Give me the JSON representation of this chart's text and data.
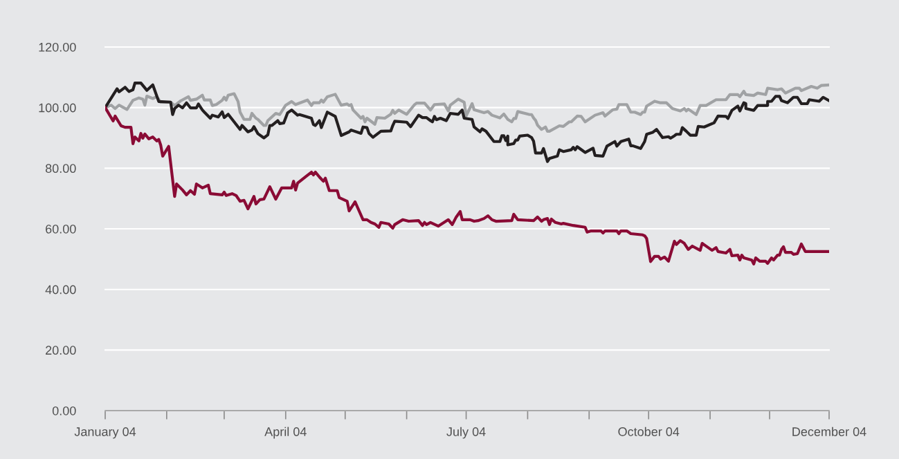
{
  "chart_data": {
    "type": "line",
    "x": [
      "2004-01-01",
      "2004-01-05",
      "2004-01-06",
      "2004-01-09",
      "2004-01-11",
      "2004-01-14",
      "2004-01-15",
      "2004-01-16",
      "2004-01-18",
      "2004-01-19",
      "2004-01-20",
      "2004-01-21",
      "2004-01-23",
      "2004-01-25",
      "2004-01-27",
      "2004-01-28",
      "2004-01-29",
      "2004-01-30",
      "2004-02-02",
      "2004-02-05",
      "2004-02-06",
      "2004-02-09",
      "2004-02-11",
      "2004-02-13",
      "2004-02-15",
      "2004-02-16",
      "2004-02-19",
      "2004-02-22",
      "2004-02-23",
      "2004-02-29",
      "2004-03-01",
      "2004-03-02",
      "2004-03-05",
      "2004-03-07",
      "2004-03-09",
      "2004-03-11",
      "2004-03-13",
      "2004-03-16",
      "2004-03-17",
      "2004-03-19",
      "2004-03-21",
      "2004-03-24",
      "2004-03-27",
      "2004-03-30",
      "2004-04-04",
      "2004-04-05",
      "2004-04-06",
      "2004-04-07",
      "2004-04-14",
      "2004-04-15",
      "2004-04-16",
      "2004-04-18",
      "2004-04-20",
      "2004-04-21",
      "2004-04-23",
      "2004-04-27",
      "2004-04-28",
      "2004-05-02",
      "2004-05-03",
      "2004-05-06",
      "2004-05-10",
      "2004-05-12",
      "2004-05-14",
      "2004-05-16",
      "2004-05-18",
      "2004-05-19",
      "2004-05-23",
      "2004-05-25",
      "2004-05-26",
      "2004-05-30",
      "2004-06-02",
      "2004-06-07",
      "2004-06-09",
      "2004-06-10",
      "2004-06-11",
      "2004-06-13",
      "2004-06-17",
      "2004-06-22",
      "2004-06-24",
      "2004-06-26",
      "2004-06-28",
      "2004-06-29",
      "2004-07-03",
      "2004-07-05",
      "2004-07-07",
      "2004-07-10",
      "2004-07-12",
      "2004-07-14",
      "2004-07-16",
      "2004-07-24",
      "2004-07-25",
      "2004-07-27",
      "2004-08-04",
      "2004-08-06",
      "2004-08-08",
      "2004-08-09",
      "2004-08-11",
      "2004-08-12",
      "2004-08-13",
      "2004-08-15",
      "2004-08-18",
      "2004-08-19",
      "2004-08-24",
      "2004-08-30",
      "2004-08-31",
      "2004-09-02",
      "2004-09-07",
      "2004-09-08",
      "2004-09-09",
      "2004-09-15",
      "2004-09-16",
      "2004-09-17",
      "2004-09-20",
      "2004-09-22",
      "2004-09-28",
      "2004-09-29",
      "2004-09-30",
      "2004-10-02",
      "2004-10-04",
      "2004-10-06",
      "2004-10-07",
      "2004-10-09",
      "2004-10-11",
      "2004-10-14",
      "2004-10-15",
      "2004-10-17",
      "2004-10-19",
      "2004-10-21",
      "2004-10-23",
      "2004-10-27",
      "2004-10-28",
      "2004-11-02",
      "2004-11-04",
      "2004-11-05",
      "2004-11-09",
      "2004-11-11",
      "2004-11-12",
      "2004-11-15",
      "2004-11-16",
      "2004-11-17",
      "2004-11-18",
      "2004-11-22",
      "2004-11-23",
      "2004-11-24",
      "2004-11-26",
      "2004-11-29",
      "2004-11-30",
      "2004-12-02",
      "2004-12-03",
      "2004-12-05",
      "2004-12-06",
      "2004-12-07",
      "2004-12-08",
      "2004-12-09",
      "2004-12-12",
      "2004-12-13",
      "2004-12-15",
      "2004-12-17",
      "2004-12-19",
      "2004-12-31"
    ],
    "series": [
      {
        "color": "#a0a2a4",
        "x": [
          "2004-01-01",
          "2004-01-04",
          "2004-01-06",
          "2004-01-08",
          "2004-01-12",
          "2004-01-15",
          "2004-01-18",
          "2004-01-20",
          "2004-01-21",
          "2004-01-22",
          "2004-01-25",
          "2004-01-27",
          "2004-01-29",
          "2004-02-03",
          "2004-02-05",
          "2004-02-08",
          "2004-02-12",
          "2004-02-13",
          "2004-02-16",
          "2004-02-19",
          "2004-02-20",
          "2004-02-23",
          "2004-02-24",
          "2004-02-26",
          "2004-02-29",
          "2004-03-01",
          "2004-03-02",
          "2004-03-03",
          "2004-03-06",
          "2004-03-08",
          "2004-03-09",
          "2004-03-11",
          "2004-03-14",
          "2004-03-15",
          "2004-03-17",
          "2004-03-18",
          "2004-03-21",
          "2004-03-22",
          "2004-03-23",
          "2004-03-27",
          "2004-03-29",
          "2004-04-01",
          "2004-04-04",
          "2004-04-06",
          "2004-04-12",
          "2004-04-14",
          "2004-04-15",
          "2004-04-18",
          "2004-04-19",
          "2004-04-20",
          "2004-04-22",
          "2004-04-26",
          "2004-04-29",
          "2004-05-02",
          "2004-05-03",
          "2004-05-04",
          "2004-05-05",
          "2004-05-09",
          "2004-05-10",
          "2004-05-11",
          "2004-05-12",
          "2004-05-16",
          "2004-05-17",
          "2004-05-21",
          "2004-05-24",
          "2004-05-25",
          "2004-05-26",
          "2004-05-28",
          "2004-06-01",
          "2004-06-05",
          "2004-06-06",
          "2004-06-10",
          "2004-06-13",
          "2004-06-15",
          "2004-06-20",
          "2004-06-22",
          "2004-06-23",
          "2004-06-27",
          "2004-06-30",
          "2004-07-01",
          "2004-07-04",
          "2004-07-05",
          "2004-07-10",
          "2004-07-12",
          "2004-07-14",
          "2004-07-18",
          "2004-07-20",
          "2004-07-22",
          "2004-07-24",
          "2004-07-25",
          "2004-07-26",
          "2004-07-27",
          "2004-08-02",
          "2004-08-03",
          "2004-08-04",
          "2004-08-05",
          "2004-08-06",
          "2004-08-08",
          "2004-08-10",
          "2004-08-11",
          "2004-08-12",
          "2004-08-17",
          "2004-08-19",
          "2004-08-22",
          "2004-08-23",
          "2004-08-26",
          "2004-08-28",
          "2004-08-30",
          "2004-09-04",
          "2004-09-08",
          "2004-09-09",
          "2004-09-13",
          "2004-09-15",
          "2004-09-16",
          "2004-09-20",
          "2004-09-22",
          "2004-09-24",
          "2004-09-27",
          "2004-09-28",
          "2004-09-29",
          "2004-09-30",
          "2004-10-04",
          "2004-10-07",
          "2004-10-10",
          "2004-10-13",
          "2004-10-17",
          "2004-10-19",
          "2004-10-20",
          "2004-10-21",
          "2004-10-25",
          "2004-10-27",
          "2004-10-30",
          "2004-11-04",
          "2004-11-09",
          "2004-11-11",
          "2004-11-15",
          "2004-11-16",
          "2004-11-18",
          "2004-11-19",
          "2004-11-23",
          "2004-11-25",
          "2004-11-29",
          "2004-11-30",
          "2004-12-05",
          "2004-12-07",
          "2004-12-09",
          "2004-12-14",
          "2004-12-16",
          "2004-12-17",
          "2004-12-22",
          "2004-12-25",
          "2004-12-27",
          "2004-12-31"
        ],
        "values": [
          100,
          100.8,
          99.7,
          100.8,
          99.4,
          102.4,
          103.2,
          102.8,
          100.8,
          103.8,
          103.0,
          103.6,
          101.8,
          101.8,
          100.7,
          102.2,
          103.6,
          102.4,
          102.8,
          104.1,
          102.5,
          102.5,
          100.7,
          101.0,
          102.4,
          103.4,
          102.5,
          104.1,
          104.6,
          102.0,
          98.5,
          96.1,
          96.1,
          98.1,
          96.5,
          96.1,
          94.1,
          94.1,
          95.7,
          98.1,
          97.7,
          100.8,
          102.0,
          101.0,
          102.5,
          100.7,
          101.6,
          101.6,
          102.5,
          101.8,
          103.6,
          104.4,
          100.8,
          101.2,
          100.7,
          101.0,
          99.2,
          96.5,
          97.1,
          95.3,
          96.5,
          94.5,
          96.7,
          96.5,
          97.8,
          99.1,
          98.1,
          99.2,
          97.8,
          101.0,
          101.5,
          101.5,
          99.2,
          101.0,
          101.2,
          98.9,
          100.8,
          102.8,
          101.8,
          97.3,
          101.3,
          99.3,
          98.3,
          98.7,
          97.5,
          96.6,
          97.9,
          96.1,
          95.3,
          96.4,
          96.4,
          98.7,
          97.7,
          97.7,
          96.6,
          95.8,
          94.2,
          92.8,
          93.6,
          92.2,
          92.2,
          94.0,
          93.8,
          95.3,
          95.3,
          97.2,
          97.1,
          95.3,
          97.5,
          98.3,
          97.2,
          99.3,
          99.5,
          101.0,
          101.0,
          98.5,
          98.5,
          97.7,
          98.5,
          98.5,
          100.5,
          102.1,
          101.6,
          101.6,
          99.7,
          98.9,
          99.7,
          98.9,
          99.5,
          97.7,
          100.7,
          100.7,
          102.6,
          102.6,
          104.3,
          104.3,
          103.6,
          105.4,
          104.3,
          104.0,
          104.8,
          104.3,
          106.4,
          105.9,
          106.2,
          104.8,
          106.4,
          106.4,
          105.6,
          107.0,
          106.4,
          107.3,
          107.5
        ]
      },
      {
        "color": "#231f20",
        "x": [
          "2004-01-01",
          "2004-01-07",
          "2004-01-08",
          "2004-01-11",
          "2004-01-13",
          "2004-01-15",
          "2004-01-16",
          "2004-01-19",
          "2004-01-22",
          "2004-01-25",
          "2004-01-28",
          "2004-02-03",
          "2004-02-04",
          "2004-02-05",
          "2004-02-07",
          "2004-02-09",
          "2004-02-11",
          "2004-02-13",
          "2004-02-16",
          "2004-02-17",
          "2004-02-19",
          "2004-02-20",
          "2004-02-23",
          "2004-02-24",
          "2004-02-27",
          "2004-02-29",
          "2004-03-01",
          "2004-03-03",
          "2004-03-09",
          "2004-03-10",
          "2004-03-13",
          "2004-03-15",
          "2004-03-16",
          "2004-03-18",
          "2004-03-21",
          "2004-03-23",
          "2004-03-24",
          "2004-03-25",
          "2004-03-28",
          "2004-03-29",
          "2004-03-31",
          "2004-04-02",
          "2004-04-04",
          "2004-04-07",
          "2004-04-08",
          "2004-04-14",
          "2004-04-15",
          "2004-04-16",
          "2004-04-18",
          "2004-04-19",
          "2004-04-22",
          "2004-04-26",
          "2004-04-29",
          "2004-05-03",
          "2004-05-04",
          "2004-05-09",
          "2004-05-10",
          "2004-05-12",
          "2004-05-13",
          "2004-05-15",
          "2004-05-19",
          "2004-05-24",
          "2004-05-25",
          "2004-05-26",
          "2004-06-01",
          "2004-06-03",
          "2004-06-07",
          "2004-06-09",
          "2004-06-11",
          "2004-06-13",
          "2004-06-14",
          "2004-06-15",
          "2004-06-16",
          "2004-06-18",
          "2004-06-21",
          "2004-06-23",
          "2004-06-27",
          "2004-06-29",
          "2004-06-30",
          "2004-07-04",
          "2004-07-05",
          "2004-07-08",
          "2004-07-09",
          "2004-07-11",
          "2004-07-15",
          "2004-07-18",
          "2004-07-19",
          "2004-07-20",
          "2004-07-21",
          "2004-07-22",
          "2004-07-22",
          "2004-07-25",
          "2004-07-26",
          "2004-07-27",
          "2004-07-28",
          "2004-08-01",
          "2004-08-03",
          "2004-08-04",
          "2004-08-05",
          "2004-08-08",
          "2004-08-09",
          "2004-08-11",
          "2004-08-12",
          "2004-08-16",
          "2004-08-17",
          "2004-08-19",
          "2004-08-23",
          "2004-08-24",
          "2004-08-25",
          "2004-08-26",
          "2004-08-30",
          "2004-09-03",
          "2004-09-04",
          "2004-09-08",
          "2004-09-10",
          "2004-09-14",
          "2004-09-15",
          "2004-09-17",
          "2004-09-21",
          "2004-09-22",
          "2004-09-23",
          "2004-09-27",
          "2004-09-29",
          "2004-09-30",
          "2004-10-03",
          "2004-10-05",
          "2004-10-08",
          "2004-10-11",
          "2004-10-12",
          "2004-10-14",
          "2004-10-15",
          "2004-10-17",
          "2004-10-18",
          "2004-10-20",
          "2004-10-22",
          "2004-10-25",
          "2004-10-26",
          "2004-10-29",
          "2004-11-03",
          "2004-11-05",
          "2004-11-09",
          "2004-11-10",
          "2004-11-12",
          "2004-11-15",
          "2004-11-16",
          "2004-11-18",
          "2004-11-19",
          "2004-11-19",
          "2004-11-23",
          "2004-11-25",
          "2004-11-30",
          "2004-11-30",
          "2004-12-02",
          "2004-12-04",
          "2004-12-06",
          "2004-12-07",
          "2004-12-10",
          "2004-12-13",
          "2004-12-15",
          "2004-12-17",
          "2004-12-20",
          "2004-12-21",
          "2004-12-26",
          "2004-12-28",
          "2004-12-31"
        ],
        "values": [
          100,
          106.2,
          105.2,
          106.7,
          105.3,
          105.9,
          108.1,
          108.1,
          105.7,
          107.5,
          102.0,
          101.8,
          97.7,
          99.7,
          100.8,
          99.9,
          101.6,
          99.9,
          99.9,
          101.2,
          99.2,
          98.5,
          96.5,
          97.5,
          96.9,
          98.6,
          96.7,
          97.8,
          92.8,
          94.1,
          92.0,
          92.6,
          93.7,
          91.4,
          90.0,
          91.0,
          94.1,
          94.1,
          95.7,
          94.7,
          94.9,
          98.3,
          99.2,
          97.5,
          97.7,
          96.5,
          94.4,
          94.1,
          95.7,
          93.4,
          98.5,
          97.1,
          90.8,
          92.0,
          92.6,
          91.5,
          93.6,
          93.4,
          91.5,
          90.2,
          92.2,
          92.3,
          94.1,
          95.5,
          95.2,
          93.7,
          97.5,
          96.7,
          96.7,
          95.7,
          95.3,
          97.1,
          96.0,
          96.5,
          95.7,
          98.1,
          97.8,
          99.2,
          96.5,
          96.1,
          93.6,
          92.0,
          93.0,
          92.2,
          88.8,
          88.8,
          90.7,
          90.7,
          89.1,
          90.6,
          87.7,
          88.1,
          89.3,
          89.3,
          90.6,
          90.9,
          90.1,
          88.9,
          85.0,
          85.0,
          86.5,
          82.2,
          83.2,
          84.0,
          86.1,
          85.5,
          86.1,
          86.9,
          86.1,
          87.1,
          85.2,
          86.6,
          84.2,
          84.0,
          87.3,
          88.8,
          87.3,
          88.8,
          89.6,
          87.4,
          87.4,
          86.5,
          88.8,
          91.2,
          91.8,
          92.8,
          90.1,
          90.4,
          89.9,
          90.7,
          91.2,
          91.2,
          93.4,
          92.2,
          90.9,
          90.9,
          93.8,
          93.6,
          95.0,
          97.2,
          97.1,
          96.4,
          99.1,
          100.5,
          98.9,
          101.6,
          101.3,
          99.7,
          99.1,
          100.7,
          100.7,
          102.0,
          102.1,
          103.7,
          103.7,
          102.3,
          101.6,
          103.4,
          103.4,
          101.3,
          101.3,
          102.6,
          102.1,
          103.4,
          102.3
        ]
      },
      {
        "color": "#8a0b35",
        "values": [
          100,
          95.6,
          97.2,
          94.0,
          93.5,
          93.5,
          88.1,
          90.3,
          89.0,
          91.5,
          89.9,
          91.3,
          89.7,
          90.3,
          89.0,
          89.5,
          87.6,
          84.0,
          87.2,
          70.7,
          74.8,
          72.8,
          71.2,
          72.6,
          71.4,
          74.8,
          73.5,
          74.4,
          71.6,
          71.2,
          72.1,
          71.0,
          71.6,
          71.0,
          69.1,
          69.4,
          66.6,
          70.7,
          68.2,
          69.6,
          69.8,
          73.9,
          69.8,
          73.5,
          73.5,
          75.7,
          72.8,
          75.1,
          78.7,
          77.8,
          78.7,
          77.1,
          75.7,
          76.7,
          72.6,
          72.6,
          70.3,
          69.1,
          65.9,
          68.9,
          63.0,
          63.0,
          62.1,
          61.6,
          60.5,
          62.1,
          61.6,
          60.2,
          61.4,
          63.0,
          62.5,
          62.7,
          61.1,
          62.1,
          61.4,
          62.1,
          60.9,
          63.0,
          61.4,
          63.9,
          65.7,
          63.0,
          63.0,
          62.5,
          62.7,
          63.4,
          64.3,
          63.0,
          62.5,
          62.7,
          64.8,
          63.0,
          62.7,
          63.9,
          62.5,
          63.0,
          63.4,
          61.4,
          63.2,
          62.1,
          61.6,
          61.8,
          61.1,
          60.5,
          58.9,
          59.3,
          59.3,
          58.6,
          59.3,
          59.3,
          58.4,
          59.3,
          59.3,
          58.4,
          58.0,
          57.7,
          56.8,
          49.2,
          50.9,
          50.9,
          50.0,
          50.7,
          49.3,
          55.9,
          54.8,
          56.1,
          55.2,
          53.2,
          54.3,
          52.9,
          55.2,
          52.9,
          53.8,
          52.5,
          52.0,
          53.2,
          51.1,
          51.3,
          49.7,
          51.3,
          50.4,
          49.7,
          48.4,
          50.4,
          49.3,
          49.3,
          48.6,
          50.4,
          49.7,
          51.3,
          51.3,
          53.2,
          54.1,
          52.2,
          52.2,
          51.6,
          51.8,
          55.0,
          52.5,
          52.5
        ]
      }
    ],
    "xlim": [
      "2004-01-01",
      "2004-12-31"
    ],
    "xticks": [
      {
        "value": "2004-01-01",
        "label": "January 04"
      },
      {
        "value": "2004-02-01",
        "label": null
      },
      {
        "value": "2004-03-01",
        "label": null
      },
      {
        "value": "2004-04-01",
        "label": "April 04"
      },
      {
        "value": "2004-05-01",
        "label": null
      },
      {
        "value": "2004-06-01",
        "label": null
      },
      {
        "value": "2004-07-01",
        "label": "July 04"
      },
      {
        "value": "2004-08-01",
        "label": null
      },
      {
        "value": "2004-09-01",
        "label": null
      },
      {
        "value": "2004-10-01",
        "label": "October 04"
      },
      {
        "value": "2004-11-01",
        "label": null
      },
      {
        "value": "2004-12-01",
        "label": null
      },
      {
        "value": "2004-12-31",
        "label": "December 04"
      }
    ],
    "ylim": [
      0,
      120
    ],
    "yticks": [
      {
        "value": 0,
        "label": "0.00"
      },
      {
        "value": 20,
        "label": "20.00"
      },
      {
        "value": 40,
        "label": "40.00"
      },
      {
        "value": 60,
        "label": "60.00"
      },
      {
        "value": 80,
        "label": "80.00"
      },
      {
        "value": 100,
        "label": "100.00"
      },
      {
        "value": 120,
        "label": "120.00"
      }
    ],
    "grid": "y",
    "line_style": "solid",
    "marker": "none"
  }
}
